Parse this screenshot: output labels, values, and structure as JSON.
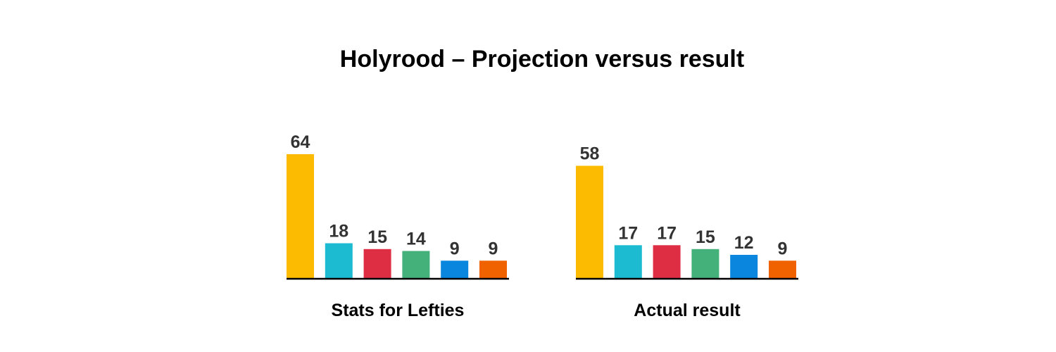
{
  "title": "Holyrood – Projection versus result",
  "chart_data": [
    {
      "type": "bar",
      "caption": "Stats for Lefties",
      "values": [
        64,
        18,
        15,
        14,
        9,
        9
      ],
      "colors": [
        "#FDBB00",
        "#1CBBD1",
        "#DE2E44",
        "#45B17A",
        "#0A86DE",
        "#F06100"
      ],
      "ylim": [
        0,
        64
      ]
    },
    {
      "type": "bar",
      "caption": "Actual result",
      "values": [
        58,
        17,
        17,
        15,
        12,
        9
      ],
      "colors": [
        "#FDBB00",
        "#1CBBD1",
        "#DE2E44",
        "#45B17A",
        "#0A86DE",
        "#F06100"
      ],
      "ylim": [
        0,
        64
      ]
    }
  ]
}
